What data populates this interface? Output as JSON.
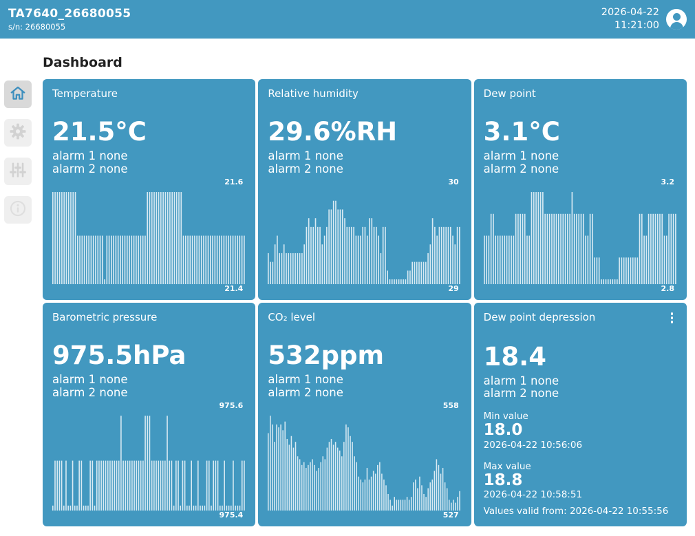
{
  "theme": {
    "primary": "#4298c0",
    "bar_color": "#ffffff",
    "bar_opacity": 0.8,
    "sidebar_active_bg": "#d9d9d9",
    "sidebar_bg": "#efefef",
    "sidebar_icon_color": "#d2d2d2",
    "sidebar_active_icon_color": "#3e8fbe"
  },
  "header": {
    "title": "TA7640_26680055",
    "serial": "s/n: 26680055",
    "date": "2026-04-22",
    "time": "11:21:00"
  },
  "page_heading": "Dashboard",
  "sidebar": {
    "items": [
      {
        "icon": "home-icon",
        "active": true
      },
      {
        "icon": "settings-gear-icon",
        "active": false
      },
      {
        "icon": "sliders-icon",
        "active": false
      },
      {
        "icon": "info-icon",
        "active": false
      }
    ]
  },
  "cards": [
    {
      "title": "Temperature",
      "value": "21.5°C",
      "alarm1": "alarm 1 none",
      "alarm2": "alarm 2 none",
      "chart": {
        "type": "bar",
        "min": 21.4,
        "max": 21.6,
        "min_label": "21.4",
        "max_label": "21.6",
        "values": [
          21.6,
          21.6,
          21.6,
          21.6,
          21.6,
          21.6,
          21.6,
          21.6,
          21.6,
          21.6,
          21.6,
          21.5,
          21.5,
          21.5,
          21.5,
          21.5,
          21.5,
          21.5,
          21.5,
          21.5,
          21.5,
          21.5,
          21.5,
          21.4,
          21.5,
          21.5,
          21.5,
          21.5,
          21.5,
          21.5,
          21.5,
          21.5,
          21.5,
          21.5,
          21.5,
          21.5,
          21.5,
          21.5,
          21.5,
          21.5,
          21.5,
          21.5,
          21.6,
          21.6,
          21.6,
          21.6,
          21.6,
          21.6,
          21.6,
          21.6,
          21.6,
          21.6,
          21.6,
          21.6,
          21.6,
          21.6,
          21.6,
          21.6,
          21.5,
          21.5,
          21.5,
          21.5,
          21.5,
          21.5,
          21.5,
          21.5,
          21.5,
          21.5,
          21.5,
          21.5,
          21.5,
          21.5,
          21.5,
          21.5,
          21.5,
          21.5,
          21.5,
          21.5,
          21.5,
          21.5,
          21.5,
          21.5,
          21.5,
          21.5,
          21.5,
          21.5
        ]
      }
    },
    {
      "title": "Relative humidity",
      "value": "29.6%RH",
      "alarm1": "alarm 1 none",
      "alarm2": "alarm 2 none",
      "chart": {
        "type": "bar",
        "min": 29,
        "max": 30,
        "min_label": "29",
        "max_label": "30",
        "values": [
          29.3,
          29.2,
          29.2,
          29.4,
          29.5,
          29.3,
          29.3,
          29.4,
          29.3,
          29.3,
          29.3,
          29.3,
          29.3,
          29.3,
          29.3,
          29.3,
          29.4,
          29.6,
          29.7,
          29.6,
          29.6,
          29.7,
          29.6,
          29.6,
          29.4,
          29.5,
          29.6,
          29.8,
          29.8,
          29.9,
          29.9,
          29.8,
          29.8,
          29.8,
          29.7,
          29.6,
          29.6,
          29.6,
          29.6,
          29.5,
          29.5,
          29.5,
          29.6,
          29.6,
          29.5,
          29.7,
          29.7,
          29.6,
          29.6,
          29.5,
          29.3,
          29.6,
          29.6,
          29.1,
          29.0,
          29.0,
          29.0,
          29.0,
          29.0,
          29.0,
          29.0,
          29.0,
          29.1,
          29.1,
          29.2,
          29.2,
          29.2,
          29.2,
          29.2,
          29.2,
          29.2,
          29.3,
          29.4,
          29.7,
          29.6,
          29.5,
          29.6,
          29.6,
          29.6,
          29.6,
          29.6,
          29.6,
          29.5,
          29.4,
          29.6,
          29.6
        ]
      }
    },
    {
      "title": "Dew point",
      "value": "3.1°C",
      "alarm1": "alarm 1 none",
      "alarm2": "alarm 2 none",
      "chart": {
        "type": "bar",
        "min": 2.8,
        "max": 3.2,
        "min_label": "2.8",
        "max_label": "3.2",
        "values": [
          3.0,
          3.0,
          3.0,
          3.1,
          3.1,
          3.0,
          3.0,
          3.0,
          3.0,
          3.0,
          3.0,
          3.0,
          3.0,
          3.0,
          3.1,
          3.1,
          3.1,
          3.1,
          3.1,
          3.0,
          3.0,
          3.2,
          3.2,
          3.2,
          3.2,
          3.2,
          3.2,
          3.1,
          3.1,
          3.1,
          3.1,
          3.1,
          3.1,
          3.1,
          3.1,
          3.1,
          3.1,
          3.1,
          3.1,
          3.2,
          3.1,
          3.1,
          3.1,
          3.1,
          3.1,
          3.0,
          3.0,
          3.1,
          3.1,
          2.9,
          2.9,
          2.9,
          2.8,
          2.8,
          2.8,
          2.8,
          2.8,
          2.8,
          2.8,
          2.8,
          2.9,
          2.9,
          2.9,
          2.9,
          2.9,
          2.9,
          2.9,
          2.9,
          2.9,
          3.1,
          3.1,
          3.0,
          3.0,
          3.1,
          3.1,
          3.1,
          3.1,
          3.1,
          3.1,
          3.1,
          3.0,
          3.0,
          3.1,
          3.1,
          3.1,
          3.1
        ]
      }
    },
    {
      "title": "Barometric pressure",
      "value": "975.5hPa",
      "alarm1": "alarm 1 none",
      "alarm2": "alarm 2 none",
      "chart": {
        "type": "bar",
        "min": 975.4,
        "max": 975.6,
        "min_label": "975.4",
        "max_label": "975.6",
        "values": [
          975.4,
          975.5,
          975.5,
          975.5,
          975.5,
          975.4,
          975.5,
          975.4,
          975.4,
          975.5,
          975.4,
          975.4,
          975.5,
          975.5,
          975.4,
          975.4,
          975.4,
          975.5,
          975.5,
          975.4,
          975.5,
          975.5,
          975.5,
          975.5,
          975.5,
          975.5,
          975.5,
          975.5,
          975.5,
          975.5,
          975.5,
          975.6,
          975.5,
          975.5,
          975.5,
          975.5,
          975.5,
          975.5,
          975.5,
          975.5,
          975.5,
          975.5,
          975.6,
          975.6,
          975.6,
          975.5,
          975.5,
          975.5,
          975.5,
          975.5,
          975.5,
          975.5,
          975.6,
          975.5,
          975.5,
          975.4,
          975.5,
          975.5,
          975.4,
          975.5,
          975.5,
          975.4,
          975.4,
          975.5,
          975.4,
          975.4,
          975.5,
          975.4,
          975.4,
          975.4,
          975.5,
          975.5,
          975.4,
          975.5,
          975.5,
          975.5,
          975.4,
          975.4,
          975.5,
          975.4,
          975.4,
          975.4,
          975.5,
          975.4,
          975.4,
          975.4,
          975.5,
          975.5
        ]
      }
    },
    {
      "title": "CO₂ level",
      "value": "532ppm",
      "alarm1": "alarm 1 none",
      "alarm2": "alarm 2 none",
      "chart": {
        "type": "bar",
        "min": 527,
        "max": 558,
        "min_label": "527",
        "max_label": "558",
        "values": [
          552,
          558,
          555,
          549,
          555,
          554,
          555,
          553,
          556,
          550,
          548,
          551,
          547,
          549,
          544,
          543,
          541,
          542,
          540,
          541,
          542,
          543,
          541,
          539,
          540,
          542,
          544,
          543,
          547,
          549,
          550,
          548,
          549,
          547,
          546,
          544,
          549,
          555,
          554,
          551,
          549,
          544,
          542,
          537,
          536,
          535,
          536,
          540,
          536,
          537,
          539,
          538,
          541,
          542,
          538,
          536,
          534,
          531,
          529,
          527,
          530,
          529,
          529,
          529,
          529,
          529,
          530,
          529,
          530,
          535,
          536,
          533,
          537,
          534,
          531,
          530,
          533,
          535,
          536,
          539,
          543,
          541,
          538,
          540,
          535,
          533,
          529,
          528,
          529,
          528,
          530,
          532
        ]
      }
    },
    {
      "title": "Dew point depression",
      "value": "18.4",
      "alarm1": "alarm 1 none",
      "alarm2": "alarm 2 none",
      "min_label": "Min value",
      "min_value": "18.0",
      "min_time": "2026-04-22 10:56:06",
      "max_label": "Max value",
      "max_value": "18.8",
      "max_time": "2026-04-22 10:58:51",
      "valid_label": "Values valid from:",
      "valid_time": "2026-04-22 10:55:56"
    }
  ]
}
